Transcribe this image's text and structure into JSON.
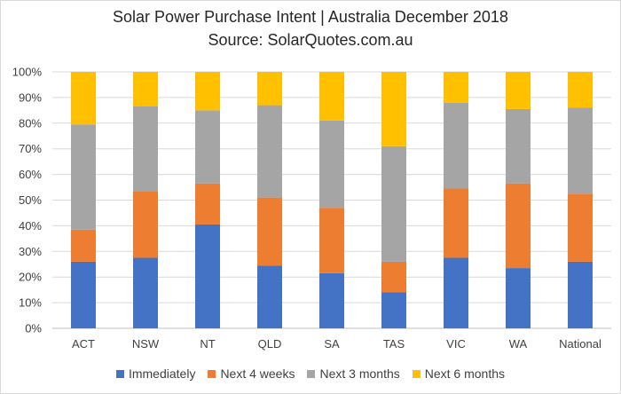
{
  "chart_data": {
    "type": "bar",
    "stacked": true,
    "title": "Solar Power Purchase Intent | Australia December 2018",
    "subtitle": "Source: SolarQuotes.com.au",
    "categories": [
      "ACT",
      "NSW",
      "NT",
      "QLD",
      "SA",
      "TAS",
      "VIC",
      "WA",
      "National"
    ],
    "yticks": [
      "0%",
      "10%",
      "20%",
      "30%",
      "40%",
      "50%",
      "60%",
      "70%",
      "80%",
      "90%",
      "100%"
    ],
    "ylim": [
      0,
      100
    ],
    "grid": true,
    "legend_position": "bottom",
    "series": [
      {
        "name": "Immediately",
        "color": "#4472c4",
        "values": [
          26,
          27.5,
          40.5,
          24.5,
          21.5,
          14,
          27.5,
          23.5,
          26
        ]
      },
      {
        "name": "Next 4 weeks",
        "color": "#ed7d31",
        "values": [
          12.5,
          26,
          16,
          26.5,
          25.5,
          12,
          27,
          33,
          26.5
        ]
      },
      {
        "name": "Next 3 months",
        "color": "#a5a5a5",
        "values": [
          41,
          33,
          28.5,
          36,
          34,
          45,
          33.5,
          29,
          33.5
        ]
      },
      {
        "name": "Next 6 months",
        "color": "#ffc000",
        "values": [
          20.5,
          13.5,
          15,
          13,
          19,
          29,
          12,
          14.5,
          14
        ]
      }
    ]
  }
}
